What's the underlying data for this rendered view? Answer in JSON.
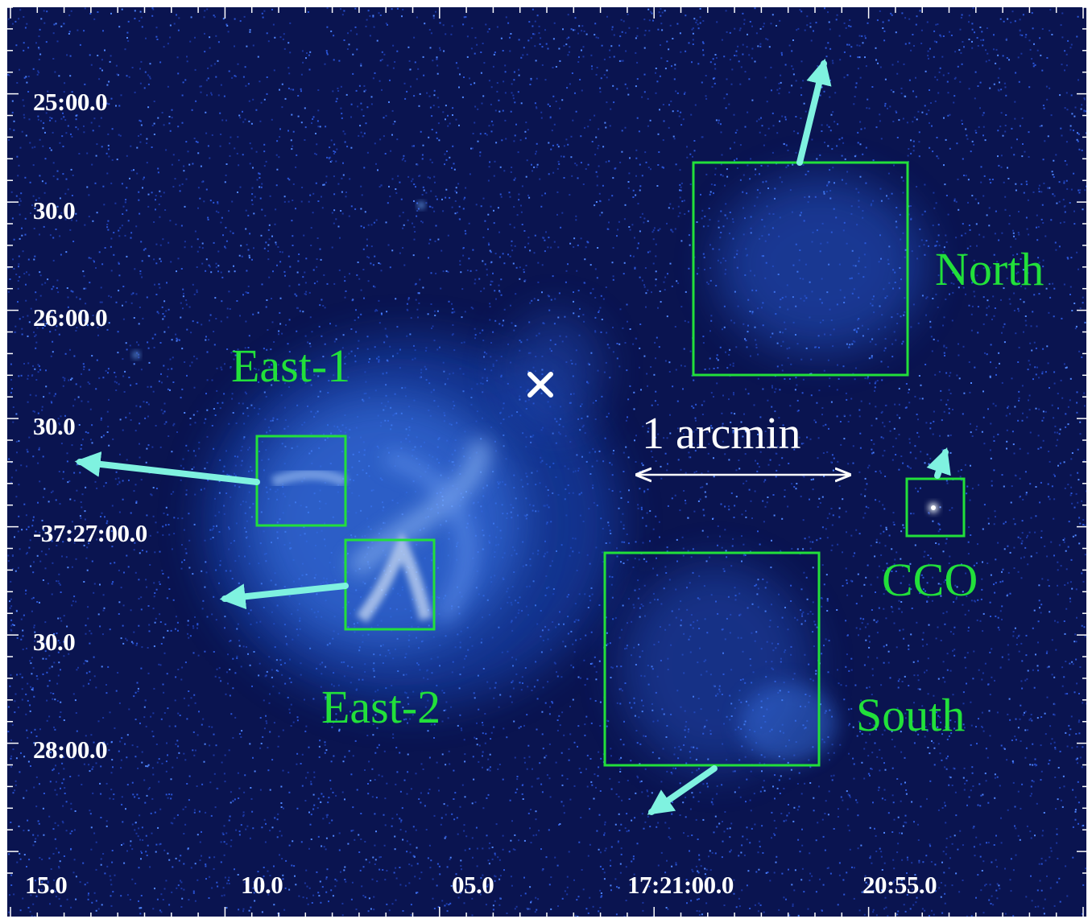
{
  "image": {
    "subject": "X-ray image of supernova remnant with labeled regions",
    "colors": {
      "sky_bg": "#0a1450",
      "emission": "#5a95ff",
      "region_box": "#22e03a",
      "arrow": "#7ff2e0",
      "marker": "#ffffff",
      "tick": "#ffffff"
    }
  },
  "axes": {
    "dec_labels": [
      "25:00.0",
      "30.0",
      "26:00.0",
      "30.0",
      "-37:27:00.0",
      "30.0",
      "28:00.0"
    ],
    "ra_labels": [
      "15.0",
      "10.0",
      "05.0",
      "17:21:00.0",
      "20:55.0"
    ]
  },
  "regions": {
    "north": {
      "label": "North"
    },
    "east1": {
      "label": "East-1"
    },
    "east2": {
      "label": "East-2"
    },
    "south": {
      "label": "South"
    },
    "cco": {
      "label": "CCO"
    }
  },
  "scale_bar": {
    "label": "1 arcmin"
  },
  "center_marker": {
    "icon": "cross-marker-icon"
  }
}
